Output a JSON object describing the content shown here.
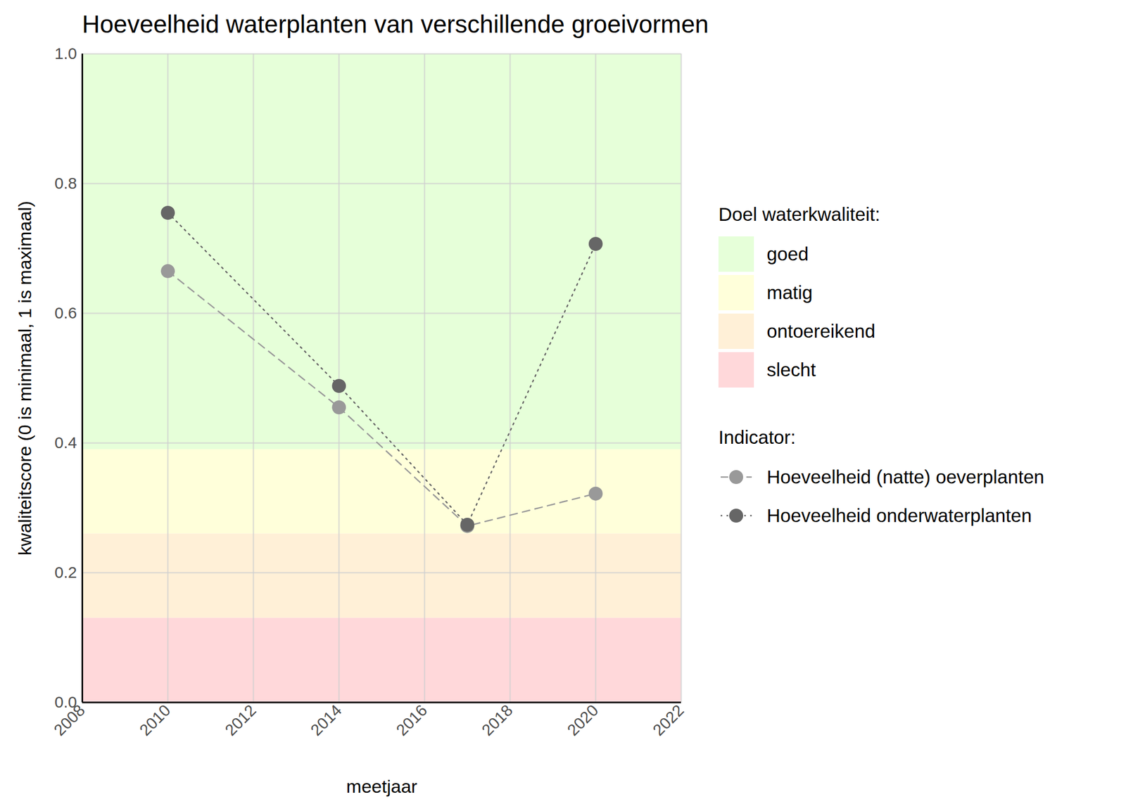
{
  "chart_data": {
    "type": "line",
    "title": "Hoeveelheid waterplanten van verschillende groeivormen",
    "x_label": "meetjaar",
    "y_label": "kwaliteitscore (0 is minimaal, 1 is maximaal)",
    "x": [
      2010,
      2014,
      2017,
      2020
    ],
    "series": [
      {
        "name": "Hoeveelheid (natte) oeverplanten",
        "color": "#999999",
        "line_style": "dashed",
        "marker": "circle",
        "values": [
          0.665,
          0.455,
          0.272,
          0.322
        ]
      },
      {
        "name": "Hoeveelheid onderwaterplanten",
        "color": "#666666",
        "line_style": "dotted",
        "marker": "circle",
        "values": [
          0.755,
          0.488,
          0.274,
          0.707
        ]
      }
    ],
    "legend_title": "Indicator:",
    "bands_title": "Doel waterkwaliteit:",
    "bands": [
      {
        "name": "goed",
        "color": "#e6ffd9",
        "from": 0.39,
        "to": 1
      },
      {
        "name": "matig",
        "color": "#ffffda",
        "from": 0.26,
        "to": 0.39
      },
      {
        "name": "ontoereikend",
        "color": "#fff0d7",
        "from": 0.13,
        "to": 0.26
      },
      {
        "name": "slecht",
        "color": "#ffd8da",
        "from": 0,
        "to": 0.13
      }
    ],
    "xlim": [
      2008,
      2022
    ],
    "xticks": [
      2008,
      2010,
      2012,
      2014,
      2016,
      2018,
      2020,
      2022
    ],
    "ylim": [
      0,
      1
    ],
    "yticks": [
      {
        "value": 0,
        "label": "0.0"
      },
      0.2,
      0.4,
      0.6,
      0.8,
      {
        "value": 1,
        "label": "1.0"
      }
    ],
    "grid": true,
    "legend": "right"
  }
}
